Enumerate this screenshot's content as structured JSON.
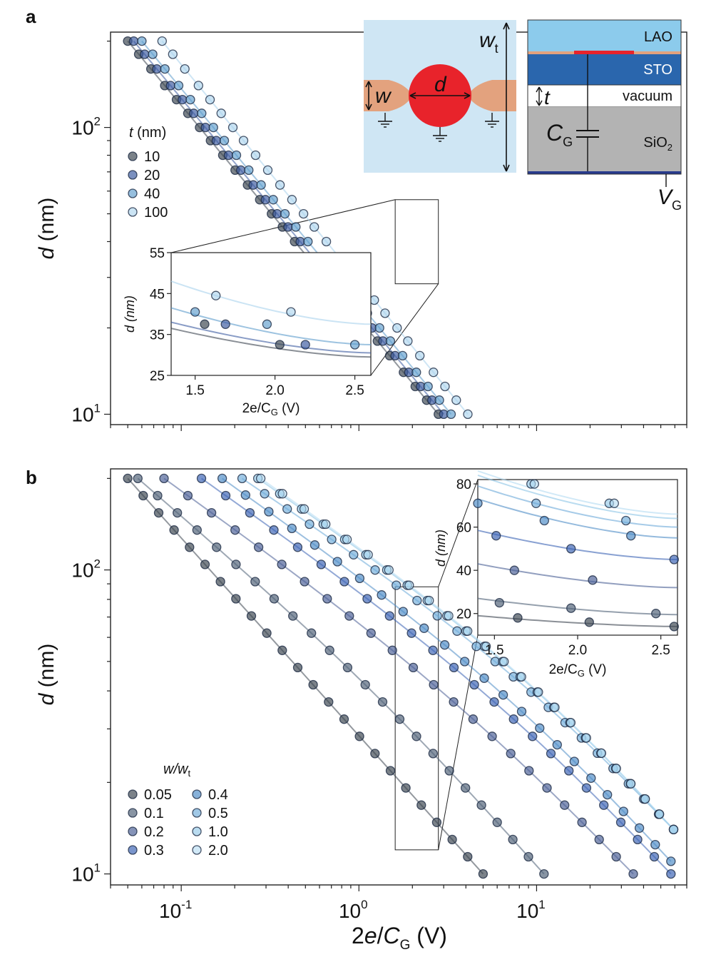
{
  "panel_labels": {
    "a": "a",
    "b": "b"
  },
  "axes_text": {
    "xlabel_main": "2e/C",
    "xlabel_sub": "G",
    "xlabel_unit": " (V)",
    "ylabel_main": "d",
    "ylabel_unit": " (nm)",
    "x_ticks_b": [
      {
        "base": "10",
        "exp": "-1",
        "value": 0.1
      },
      {
        "base": "10",
        "exp": "0",
        "value": 1
      },
      {
        "base": "10",
        "exp": "1",
        "value": 10
      }
    ],
    "y_ticks": [
      {
        "base": "10",
        "exp": "1",
        "value": 10
      },
      {
        "base": "10",
        "exp": "2",
        "value": 100
      }
    ]
  },
  "schematic": {
    "label_d": "d",
    "label_w": "w",
    "label_wt_main": "w",
    "label_wt_sub": "t",
    "layers": {
      "lao": "LAO",
      "sto": "STO",
      "vacuum": "vacuum",
      "sio2_main": "SiO",
      "sio2_sub": "2"
    },
    "label_t": "t",
    "label_cg_main": "C",
    "label_cg_sub": "G",
    "label_vg_main": "V",
    "label_vg_sub": "G",
    "colors": {
      "background": "#cfe6f4",
      "dot": "#e8232b",
      "lead": "#e3a27e",
      "lao": "#8ccbec",
      "sto": "#2a66ad",
      "sio2": "#b3b3b3",
      "gate": "#273a8c"
    }
  },
  "chart_data": [
    {
      "panel": "a",
      "type": "scatter",
      "x_scale": "log",
      "y_scale": "log",
      "xlim": [
        0.04,
        70
      ],
      "ylim": [
        9.2,
        215
      ],
      "legend": {
        "title_main": "t",
        "title_unit": " (nm)",
        "placement": "top-left"
      },
      "series": [
        {
          "name": "10",
          "color": "#3c4550",
          "opacity": 0.9,
          "x_at_d10": 2.8,
          "x_at_d200": 0.05
        },
        {
          "name": "20",
          "color": "#3b5aa0",
          "opacity": 0.9,
          "x_at_d10": 3.0,
          "x_at_d200": 0.054
        },
        {
          "name": "40",
          "color": "#5b9bcc",
          "opacity": 0.85,
          "x_at_d10": 3.3,
          "x_at_d200": 0.06
        },
        {
          "name": "100",
          "color": "#a8d2ec",
          "opacity": 0.8,
          "x_at_d10": 4.1,
          "x_at_d200": 0.078
        }
      ],
      "d_values": [
        200,
        180,
        160,
        140,
        125,
        112,
        100,
        90,
        80,
        71,
        63,
        56,
        50,
        45,
        40,
        35,
        32,
        28,
        25,
        22.5,
        20,
        18,
        16,
        14,
        12.5,
        11.2,
        10
      ],
      "inset": {
        "xlim": [
          1.35,
          2.6
        ],
        "ylim": [
          25,
          55
        ],
        "x_ticks": [
          "1.5",
          "2.0",
          "2.5"
        ],
        "y_ticks": [
          "25",
          "35",
          "45",
          "55"
        ],
        "zoom_region": {
          "x": [
            1.6,
            2.8
          ],
          "y": [
            28.5,
            56
          ]
        },
        "xlabel_main": "2e/C",
        "xlabel_sub": "G",
        "xlabel_unit": " (V)",
        "ylabel": "d (nm)",
        "points": [
          {
            "series": "10",
            "x": 1.56,
            "y": 37.5
          },
          {
            "series": "10",
            "x": 2.03,
            "y": 32.5
          },
          {
            "series": "20",
            "x": 1.69,
            "y": 37.5
          },
          {
            "series": "20",
            "x": 2.19,
            "y": 32.5
          },
          {
            "series": "40",
            "x": 1.5,
            "y": 40.5
          },
          {
            "series": "40",
            "x": 1.95,
            "y": 37.5
          },
          {
            "series": "40",
            "x": 2.5,
            "y": 32.5
          },
          {
            "series": "100",
            "x": 1.63,
            "y": 44.5
          },
          {
            "series": "100",
            "x": 2.1,
            "y": 40.5
          }
        ],
        "curves": [
          {
            "series": "10",
            "y_left": 36.5,
            "y_right": 29.5
          },
          {
            "series": "20",
            "y_left": 38.0,
            "y_right": 30.5
          },
          {
            "series": "40",
            "y_left": 41.5,
            "y_right": 32.5
          },
          {
            "series": "100",
            "y_left": 48.0,
            "y_right": 37.5
          }
        ]
      }
    },
    {
      "panel": "b",
      "type": "scatter",
      "x_scale": "log",
      "y_scale": "log",
      "xlim": [
        0.04,
        70
      ],
      "ylim": [
        9.2,
        215
      ],
      "legend": {
        "title_main": "w/w",
        "title_sub": "t",
        "placement": "bottom-left"
      },
      "series": [
        {
          "name": "0.05",
          "color": "#3c4550",
          "opacity": 0.9,
          "x_at_d10": 5.0,
          "x_at_d200": 0.05,
          "curvature": 0.0
        },
        {
          "name": "0.1",
          "color": "#4f6077",
          "opacity": 0.9,
          "x_at_d10": 11.0,
          "x_at_d200": 0.057,
          "curvature": 0.25
        },
        {
          "name": "0.2",
          "color": "#4a5f95",
          "opacity": 0.9,
          "x_at_d10": 35.0,
          "x_at_d200": 0.08,
          "curvature": 0.4
        },
        {
          "name": "0.3",
          "color": "#3a62b4",
          "opacity": 0.9,
          "x_at_d10": 57.0,
          "x_at_d200": 0.13,
          "curvature": 0.45
        },
        {
          "name": "0.4",
          "color": "#4d8cc6",
          "opacity": 0.9,
          "x_at_d11": 57.0,
          "x_at_d200": 0.17,
          "curvature": 0.45
        },
        {
          "name": "0.5",
          "color": "#6aa9d8",
          "opacity": 0.85,
          "x_at_d14": 59.0,
          "x_at_d200": 0.22,
          "curvature": 0.45
        },
        {
          "name": "1.0",
          "color": "#8cc4e6",
          "opacity": 0.8,
          "x_at_d14": 59.0,
          "x_at_d200": 0.27,
          "curvature": 0.45
        },
        {
          "name": "2.0",
          "color": "#b2dbf2",
          "opacity": 0.8,
          "x_at_d14": 59.0,
          "x_at_d200": 0.28,
          "curvature": 0.45
        }
      ],
      "inset": {
        "xlim": [
          1.4,
          2.6
        ],
        "ylim": [
          10,
          82
        ],
        "x_ticks": [
          "1.5",
          "2.0",
          "2.5"
        ],
        "y_ticks": [
          "20",
          "40",
          "60",
          "80"
        ],
        "zoom_region": {
          "x": [
            1.6,
            2.8
          ],
          "y": [
            12,
            88
          ]
        },
        "xlabel_main": "2e/C",
        "xlabel_sub": "G",
        "xlabel_unit": " (V)",
        "ylabel": "d (nm)",
        "points": [
          {
            "series": "0.05",
            "x": 1.64,
            "y": 18
          },
          {
            "series": "0.05",
            "x": 2.07,
            "y": 16
          },
          {
            "series": "0.05",
            "x": 2.58,
            "y": 14
          },
          {
            "series": "0.1",
            "x": 1.53,
            "y": 25
          },
          {
            "series": "0.1",
            "x": 1.96,
            "y": 22.5
          },
          {
            "series": "0.1",
            "x": 2.47,
            "y": 20
          },
          {
            "series": "0.2",
            "x": 1.62,
            "y": 40
          },
          {
            "series": "0.2",
            "x": 2.09,
            "y": 35.5
          },
          {
            "series": "0.3",
            "x": 1.51,
            "y": 56
          },
          {
            "series": "0.3",
            "x": 1.96,
            "y": 50
          },
          {
            "series": "0.3",
            "x": 2.58,
            "y": 45
          },
          {
            "series": "0.4",
            "x": 1.4,
            "y": 71
          },
          {
            "series": "0.4",
            "x": 1.8,
            "y": 63
          },
          {
            "series": "0.4",
            "x": 2.32,
            "y": 56
          },
          {
            "series": "0.5",
            "x": 1.75,
            "y": 71
          },
          {
            "series": "0.5",
            "x": 2.29,
            "y": 63
          },
          {
            "series": "1.0",
            "x": 1.72,
            "y": 80
          },
          {
            "series": "1.0",
            "x": 2.19,
            "y": 71
          },
          {
            "series": "2.0",
            "x": 1.74,
            "y": 80
          },
          {
            "series": "2.0",
            "x": 2.22,
            "y": 71
          }
        ],
        "curves": [
          {
            "series": "0.05",
            "y_left": 19.0,
            "y_right": 14.0
          },
          {
            "series": "0.1",
            "y_left": 27.0,
            "y_right": 19.5
          },
          {
            "series": "0.2",
            "y_left": 43.0,
            "y_right": 32.0
          },
          {
            "series": "0.3",
            "y_left": 58.5,
            "y_right": 45.0
          },
          {
            "series": "0.4",
            "y_left": 73.0,
            "y_right": 55.0
          },
          {
            "series": "0.5",
            "y_left": 79.0,
            "y_right": 60.0
          },
          {
            "series": "1.0",
            "y_left": 84.0,
            "y_right": 64.0
          },
          {
            "series": "2.0",
            "y_left": 86.0,
            "y_right": 66.0
          }
        ]
      }
    }
  ]
}
